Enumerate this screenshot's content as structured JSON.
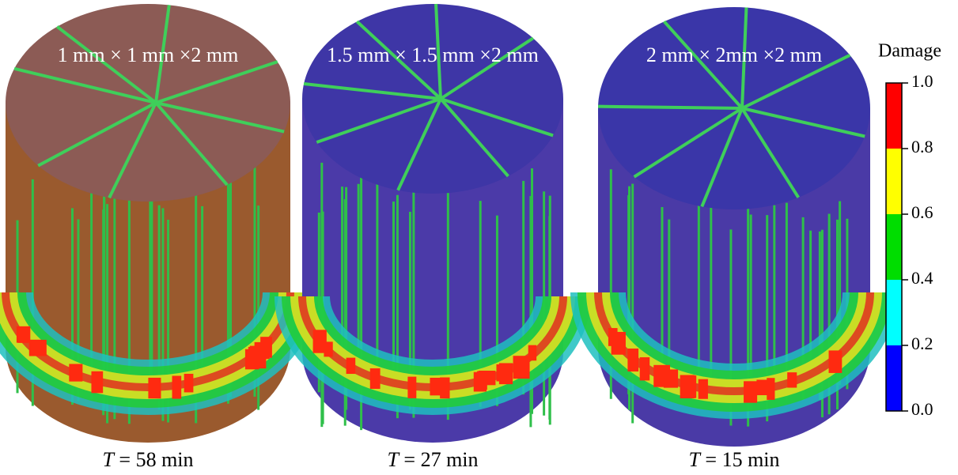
{
  "panels": [
    {
      "mesh": "1 mm × 1 mm ×2 mm",
      "time": {
        "variable": "T",
        "text": " = 58 min"
      }
    },
    {
      "mesh": "1.5 mm × 1.5 mm ×2 mm",
      "time": {
        "variable": "T",
        "text": " = 27 min"
      }
    },
    {
      "mesh": "2 mm × 2mm ×2 mm",
      "time": {
        "variable": "T",
        "text": " = 15 min"
      }
    }
  ],
  "colorbar": {
    "title": "Damage",
    "ticks": [
      {
        "value": 0,
        "label": "0.0"
      },
      {
        "value": 0.2,
        "label": "0.2"
      },
      {
        "value": 0.4,
        "label": "0.4"
      },
      {
        "value": 0.6,
        "label": "0.6"
      },
      {
        "value": 0.8,
        "label": "0.8"
      },
      {
        "value": 1,
        "label": "1.0"
      }
    ],
    "colors": [
      "#0000ff",
      "#00ffff",
      "#00dd00",
      "#ffff00",
      "#ff0000"
    ]
  }
}
